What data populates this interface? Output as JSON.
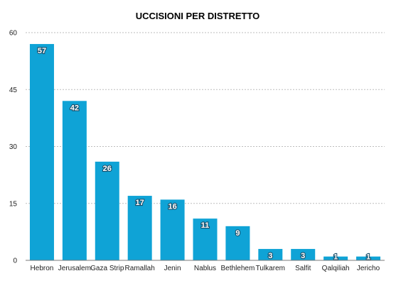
{
  "chart_data": {
    "type": "bar",
    "title": "UCCISIONI PER DISTRETTO",
    "xlabel": "",
    "ylabel": "",
    "categories": [
      "Hebron",
      "Jerusalem",
      "Gaza Strip",
      "Ramallah",
      "Jenin",
      "Nablus",
      "Bethlehem",
      "Tulkarem",
      "Salfit",
      "Qalqiliah",
      "Jericho"
    ],
    "values": [
      57,
      42,
      26,
      17,
      16,
      11,
      9,
      3,
      3,
      1,
      1
    ],
    "ylim": [
      0,
      60
    ],
    "yticks": [
      0,
      15,
      30,
      45,
      60
    ],
    "grid": true,
    "data_labels": true,
    "bar_color": "#0fa3d6"
  }
}
